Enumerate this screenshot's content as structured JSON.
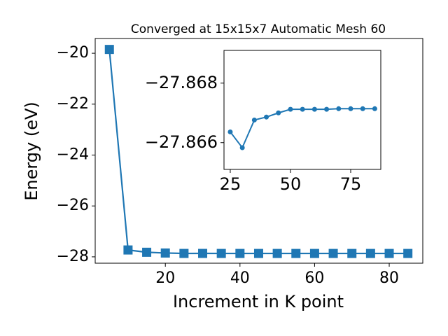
{
  "chart_data": [
    {
      "type": "line",
      "title": "Converged at 15x15x7 Automatic Mesh 60",
      "x_label": "Increment in K point",
      "y_label": "Energy (eV)",
      "x": [
        5,
        10,
        15,
        20,
        25,
        30,
        35,
        40,
        45,
        50,
        55,
        60,
        65,
        70,
        75,
        80,
        85
      ],
      "series": [
        {
          "color": "#1f77b4",
          "marker": "square",
          "values": [
            -19.85,
            -27.73,
            -27.82,
            -27.85,
            -27.86636,
            -27.86583,
            -27.86676,
            -27.86686,
            -27.867,
            -27.86712,
            -27.86712,
            -27.86712,
            -27.86712,
            -27.86714,
            -27.86714,
            -27.86714,
            -27.86714
          ]
        }
      ],
      "xlim": [
        1.2,
        89
      ],
      "ylim": [
        -28.25,
        -19.42
      ],
      "xticks": [
        20,
        40,
        60,
        80
      ],
      "yticks": [
        {
          "value": -28,
          "label": "−28"
        },
        {
          "value": -26,
          "label": "−26"
        },
        {
          "value": -24,
          "label": "−24"
        },
        {
          "value": -22,
          "label": "−22"
        },
        {
          "value": -20,
          "label": "−20"
        }
      ]
    },
    {
      "type": "line",
      "x": [
        25,
        30,
        35,
        40,
        45,
        50,
        55,
        60,
        65,
        70,
        75,
        80,
        85
      ],
      "series": [
        {
          "color": "#1f77b4",
          "marker": "circle",
          "values": [
            -27.86636,
            -27.86583,
            -27.86676,
            -27.86686,
            -27.867,
            -27.86712,
            -27.86712,
            -27.86712,
            -27.86712,
            -27.86714,
            -27.86714,
            -27.86714,
            -27.86714
          ]
        }
      ],
      "xlim": [
        22.4,
        87.5
      ],
      "ylim": [
        -27.8651,
        -27.8691
      ],
      "xticks": [
        25,
        50,
        75
      ],
      "yticks": [
        {
          "value": -27.866,
          "label": "−27.866"
        },
        {
          "value": -27.868,
          "label": "−27.868"
        }
      ]
    }
  ]
}
